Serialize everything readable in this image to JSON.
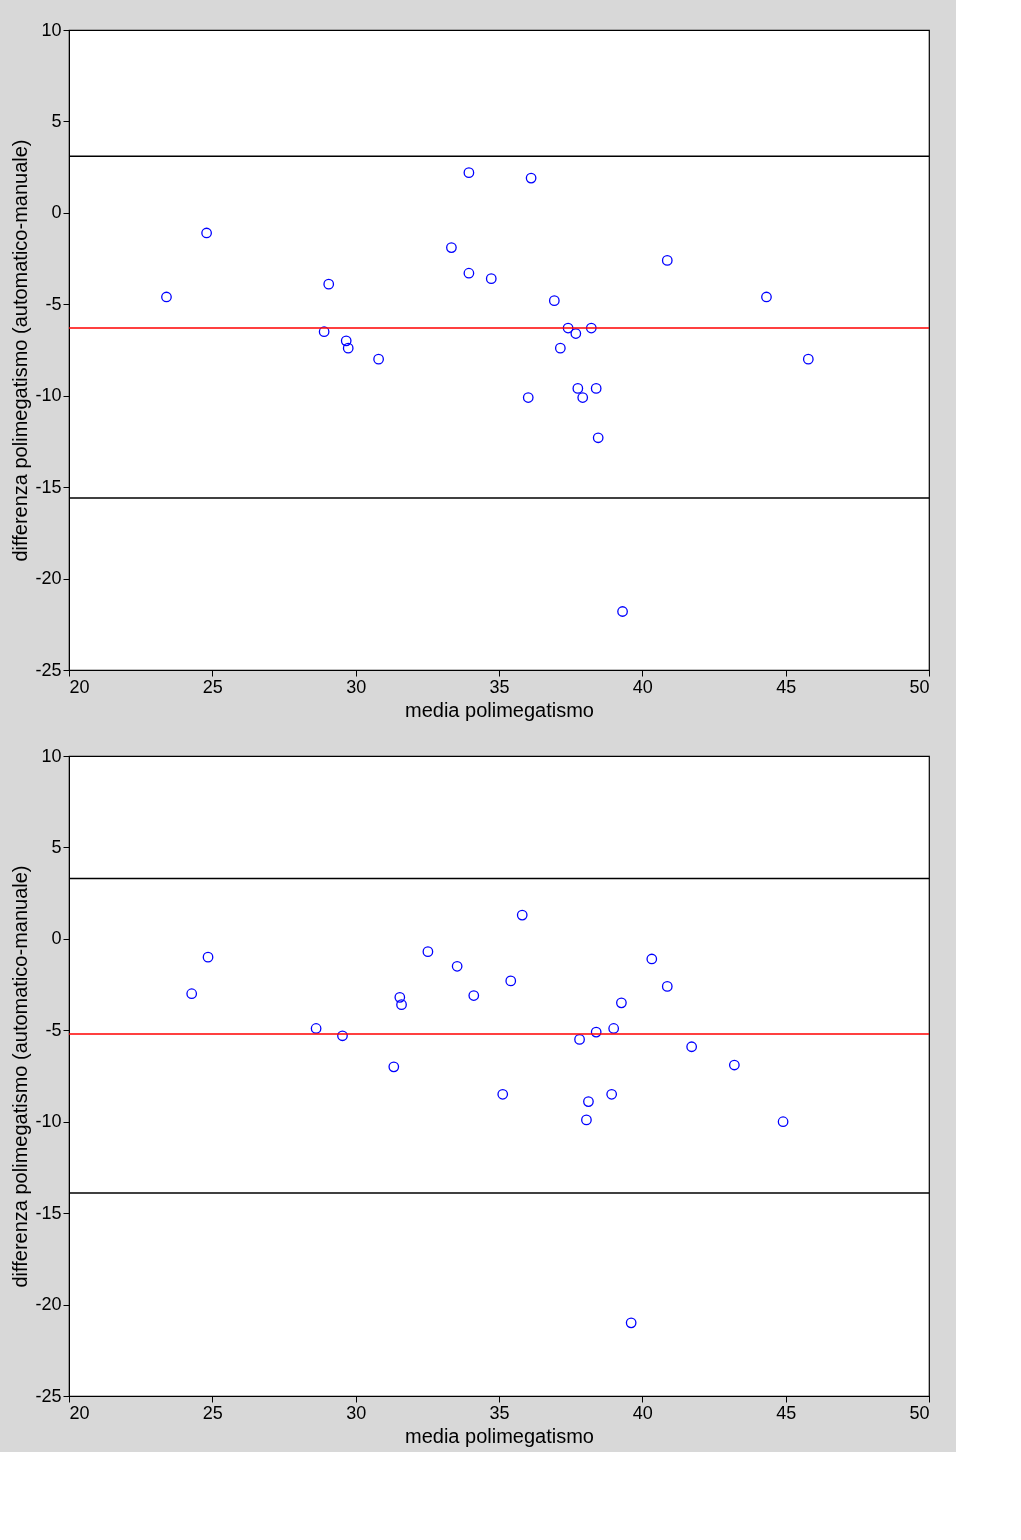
{
  "chart_data": [
    {
      "type": "scatter",
      "xlabel": "media polimegatismo",
      "ylabel": "differenza polimegatismo (automatico-manuale)",
      "xlim": [
        20,
        50
      ],
      "ylim": [
        -25,
        10
      ],
      "xticks": [
        20,
        25,
        30,
        35,
        40,
        45,
        50
      ],
      "yticks": [
        -25,
        -20,
        -15,
        -10,
        -5,
        0,
        5,
        10
      ],
      "marker": "circle",
      "grid": false,
      "series": [
        {
          "color": "#0000ff",
          "x": [
            23.4,
            24.8,
            29.06,
            28.9,
            29.67,
            29.74,
            30.8,
            33.34,
            33.95,
            33.95,
            34.73,
            36.12,
            36.02,
            36.93,
            37.14,
            37.41,
            37.68,
            38.22,
            37.75,
            37.92,
            38.39,
            38.46,
            39.31,
            40.87,
            44.33,
            45.79
          ],
          "values": [
            -4.6,
            -1.1,
            -3.9,
            -6.5,
            -7.0,
            -7.4,
            -8.0,
            -1.9,
            2.2,
            -3.3,
            -3.6,
            1.9,
            -10.1,
            -4.8,
            -7.4,
            -6.3,
            -6.6,
            -6.3,
            -9.6,
            -10.1,
            -9.6,
            -12.3,
            -21.8,
            -2.6,
            -4.6,
            -8.0
          ]
        }
      ],
      "ref_lines": [
        {
          "axis": "y",
          "value": 3.1,
          "color": "#000000"
        },
        {
          "axis": "y",
          "value": -6.3,
          "color": "#ff0000"
        },
        {
          "axis": "y",
          "value": -15.6,
          "color": "#000000"
        }
      ]
    },
    {
      "type": "scatter",
      "xlabel": "media polimegatismo",
      "ylabel": "differenza polimegatismo (automatico-manuale)",
      "xlim": [
        20,
        50
      ],
      "ylim": [
        -25,
        10
      ],
      "xticks": [
        20,
        25,
        30,
        35,
        40,
        45,
        50
      ],
      "yticks": [
        -25,
        -20,
        -15,
        -10,
        -5,
        0,
        5,
        10
      ],
      "marker": "circle",
      "grid": false,
      "series": [
        {
          "color": "#0000ff",
          "x": [
            24.28,
            24.85,
            28.62,
            29.54,
            31.33,
            31.54,
            31.6,
            32.52,
            33.54,
            34.12,
            35.13,
            35.41,
            35.81,
            37.81,
            38.12,
            38.05,
            38.39,
            39.0,
            38.93,
            39.27,
            39.61,
            40.33,
            40.87,
            41.72,
            43.21,
            44.91
          ],
          "values": [
            -3.0,
            -1.0,
            -4.9,
            -5.3,
            -7.0,
            -3.2,
            -3.6,
            -0.7,
            -1.5,
            -3.1,
            -8.5,
            -2.3,
            1.3,
            -5.5,
            -8.9,
            -9.9,
            -5.1,
            -4.9,
            -8.5,
            -3.5,
            -21.0,
            -1.1,
            -2.6,
            -5.9,
            -6.9,
            -10.0
          ]
        }
      ],
      "ref_lines": [
        {
          "axis": "y",
          "value": 3.3,
          "color": "#000000"
        },
        {
          "axis": "y",
          "value": -5.2,
          "color": "#ff0000"
        },
        {
          "axis": "y",
          "value": -13.9,
          "color": "#000000"
        }
      ]
    }
  ]
}
